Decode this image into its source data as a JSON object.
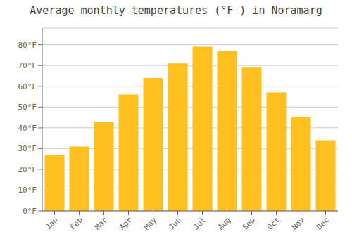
{
  "chart_data": {
    "type": "bar",
    "title": "Average monthly temperatures (°F ) in Noramarg",
    "categories": [
      "Jan",
      "Feb",
      "Mar",
      "Apr",
      "May",
      "Jun",
      "Jul",
      "Aug",
      "Sep",
      "Oct",
      "Nov",
      "Dec"
    ],
    "values": [
      27,
      31,
      43,
      56,
      64,
      71,
      79,
      77,
      69,
      57,
      45,
      34
    ],
    "color": "#FFC020",
    "ylim": [
      0,
      88
    ],
    "yticks": [
      {
        "value": 0,
        "label": "0°F"
      },
      {
        "value": 10,
        "label": "10°F"
      },
      {
        "value": 20,
        "label": "20°F"
      },
      {
        "value": 30,
        "label": "30°F"
      },
      {
        "value": 40,
        "label": "40°F"
      },
      {
        "value": 50,
        "label": "50°F"
      },
      {
        "value": 60,
        "label": "60°F"
      },
      {
        "value": 70,
        "label": "70°F"
      },
      {
        "value": 80,
        "label": "80°F"
      }
    ],
    "grid": true
  }
}
